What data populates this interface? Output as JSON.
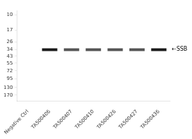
{
  "chart_data": {
    "type": "scatter",
    "categories": [
      "Negative Ctrl",
      "TA500406",
      "TA500407",
      "TA500410",
      "TA500426",
      "TA500427",
      "TA500436"
    ],
    "values": [
      null,
      34,
      34,
      34,
      34,
      34,
      34
    ],
    "colors": [
      null,
      "#1a1a1a",
      "#555555",
      "#555555",
      "#555555",
      "#555555",
      "#1a1a1a"
    ],
    "marker": "line",
    "log": "y",
    "ylim": [
      210,
      8.5
    ],
    "yticks": [
      170,
      130,
      95,
      72,
      55,
      43,
      34,
      26,
      17,
      10
    ],
    "grid": false,
    "annotations": [
      {
        "text": "←SSB",
        "y": 34
      }
    ]
  }
}
